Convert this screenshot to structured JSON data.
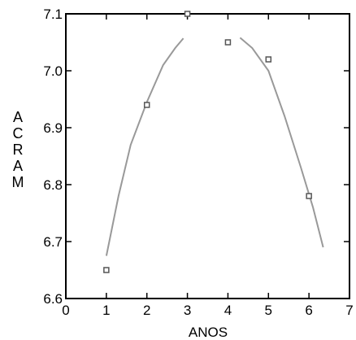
{
  "chart_data": {
    "type": "scatter",
    "title": "",
    "xlabel": "ANOS",
    "ylabel": "ACRAM",
    "xlim": [
      0,
      7
    ],
    "ylim": [
      6.6,
      7.1
    ],
    "x_ticks": [
      0,
      1,
      2,
      3,
      4,
      5,
      6,
      7
    ],
    "y_ticks": [
      6.6,
      6.7,
      6.8,
      6.9,
      7.0,
      7.1
    ],
    "x_tick_labels": [
      "0",
      "1",
      "2",
      "3",
      "4",
      "5",
      "6",
      "7"
    ],
    "y_tick_labels": [
      "6.6",
      "6.7",
      "6.8",
      "6.9",
      "7.0",
      "7.1"
    ],
    "grid": false,
    "points": [
      {
        "x": 1,
        "y": 6.65
      },
      {
        "x": 2,
        "y": 6.94
      },
      {
        "x": 3,
        "y": 7.1
      },
      {
        "x": 4,
        "y": 7.05
      },
      {
        "x": 5,
        "y": 7.02
      },
      {
        "x": 6,
        "y": 6.78
      }
    ],
    "curves": [
      {
        "x": [
          1,
          1.3,
          1.6,
          2.0,
          2.4,
          2.7,
          2.9
        ],
        "y": [
          6.675,
          6.78,
          6.87,
          6.945,
          7.01,
          7.04,
          7.057
        ]
      },
      {
        "x": [
          4.3,
          4.6,
          5.0,
          5.4,
          5.8,
          6.1,
          6.35
        ],
        "y": [
          7.058,
          7.04,
          7.0,
          6.92,
          6.83,
          6.76,
          6.69
        ]
      }
    ],
    "colors": {
      "marker": "#555555",
      "curve": "#999999",
      "axis": "#000000"
    }
  }
}
